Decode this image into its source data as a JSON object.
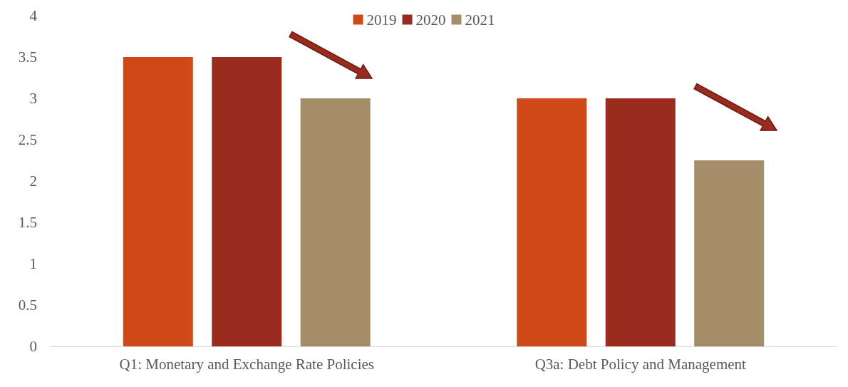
{
  "chart_data": {
    "type": "bar",
    "categories": [
      "Q1: Monetary and Exchange Rate Policies",
      "Q3a: Debt Policy and Management"
    ],
    "series": [
      {
        "name": "2019",
        "color": "#d04a18",
        "values": [
          3.5,
          3
        ]
      },
      {
        "name": "2020",
        "color": "#9a2b1f",
        "values": [
          3.5,
          3
        ]
      },
      {
        "name": "2021",
        "color": "#a68d6a",
        "values": [
          3,
          2.25
        ]
      }
    ],
    "ylim": [
      0,
      4
    ],
    "yticks": [
      0,
      0.5,
      1,
      1.5,
      2,
      2.5,
      3,
      3.5,
      4
    ],
    "grid": false,
    "legend": "top"
  }
}
